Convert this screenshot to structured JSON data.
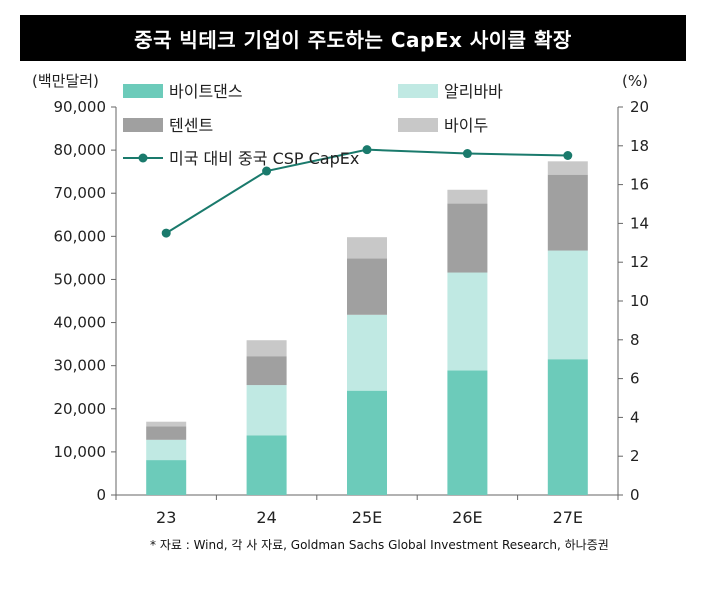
{
  "header": {
    "title": "중국 빅테크 기업이 주도하는 CapEx 사이클 확장"
  },
  "footnote": "* 자료 : Wind, 각 사 자료, Goldman Sachs Global Investment Research, 하나증권",
  "chart_data": {
    "type": "bar",
    "stacked": true,
    "title": "중국 빅테크 기업이 주도하는 CapEx 사이클 확장",
    "categories": [
      "23",
      "24",
      "25E",
      "26E",
      "27E"
    ],
    "y_left": {
      "label": "(백만달러)",
      "range": [
        0,
        90000
      ],
      "ticks": [
        0,
        10000,
        20000,
        30000,
        40000,
        50000,
        60000,
        70000,
        80000,
        90000
      ],
      "tick_labels": [
        "0",
        "10,000",
        "20,000",
        "30,000",
        "40,000",
        "50,000",
        "60,000",
        "70,000",
        "80,000",
        "90,000"
      ]
    },
    "y_right": {
      "label": "(%)",
      "range": [
        0,
        20
      ],
      "ticks": [
        0,
        2,
        4,
        6,
        8,
        10,
        12,
        14,
        16,
        18,
        20
      ],
      "tick_labels": [
        "0",
        "2",
        "4",
        "6",
        "8",
        "10",
        "12",
        "14",
        "16",
        "18",
        "20"
      ]
    },
    "series": [
      {
        "name": "바이트댄스",
        "color": "#6ccbba",
        "values": [
          8100,
          13800,
          24200,
          28900,
          31500
        ]
      },
      {
        "name": "알리바바",
        "color": "#c0e9e3",
        "values": [
          4700,
          11700,
          17600,
          22700,
          25200
        ]
      },
      {
        "name": "텐센트",
        "color": "#a0a0a0",
        "values": [
          3100,
          6700,
          13100,
          16000,
          17600
        ]
      },
      {
        "name": "바이두",
        "color": "#c8c8c8",
        "values": [
          1100,
          3700,
          4900,
          3200,
          3100
        ]
      }
    ],
    "line_series": {
      "name": "미국 대비 중국 CSP CapEx",
      "color": "#1a7a6c",
      "axis": "right",
      "values": [
        13.5,
        16.7,
        17.8,
        17.6,
        17.5
      ]
    },
    "legend_position": "top-left",
    "grid": false
  }
}
